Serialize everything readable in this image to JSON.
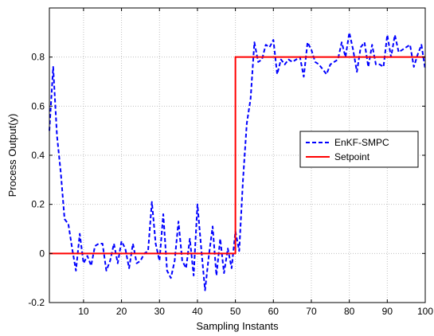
{
  "chart_data": {
    "type": "line",
    "title": "",
    "xlabel": "Sampling Instants",
    "ylabel": "Process Output(y)",
    "xlim": [
      1,
      100
    ],
    "ylim": [
      -0.2,
      1.0
    ],
    "xticks": [
      10,
      20,
      30,
      40,
      50,
      60,
      70,
      80,
      90,
      100
    ],
    "yticks": [
      -0.2,
      0,
      0.2,
      0.4,
      0.6,
      0.8
    ],
    "ytick_labels": [
      "-0.2",
      "0",
      "0.2",
      "0.4",
      "0.6",
      "0.8"
    ],
    "grid": true,
    "legend_position": "center-right",
    "series": [
      {
        "name": "EnKF-SMPC",
        "color": "#0000ff",
        "style": "dashed",
        "x": [
          1,
          2,
          3,
          4,
          5,
          6,
          7,
          8,
          9,
          10,
          11,
          12,
          13,
          14,
          15,
          16,
          17,
          18,
          19,
          20,
          21,
          22,
          23,
          24,
          25,
          26,
          27,
          28,
          29,
          30,
          31,
          32,
          33,
          34,
          35,
          36,
          37,
          38,
          39,
          40,
          41,
          42,
          43,
          44,
          45,
          46,
          47,
          48,
          49,
          50,
          51,
          52,
          53,
          54,
          55,
          56,
          57,
          58,
          59,
          60,
          61,
          62,
          63,
          64,
          65,
          66,
          67,
          68,
          69,
          70,
          71,
          72,
          73,
          74,
          75,
          76,
          77,
          78,
          79,
          80,
          81,
          82,
          83,
          84,
          85,
          86,
          87,
          88,
          89,
          90,
          91,
          92,
          93,
          94,
          95,
          96,
          97,
          98,
          99,
          100
        ],
        "y": [
          0.5,
          0.76,
          0.48,
          0.33,
          0.14,
          0.12,
          0.02,
          -0.07,
          0.08,
          -0.04,
          -0.01,
          -0.05,
          0.03,
          0.04,
          0.04,
          -0.07,
          -0.03,
          0.04,
          -0.04,
          0.05,
          0.02,
          -0.06,
          0.04,
          -0.04,
          -0.03,
          0.0,
          0.01,
          0.21,
          0.04,
          -0.03,
          0.16,
          -0.07,
          -0.1,
          -0.03,
          0.13,
          -0.03,
          -0.06,
          0.06,
          -0.09,
          0.2,
          0.02,
          -0.15,
          -0.01,
          0.11,
          -0.09,
          0.06,
          -0.08,
          0.02,
          -0.06,
          0.09,
          0.01,
          0.3,
          0.53,
          0.63,
          0.86,
          0.78,
          0.79,
          0.85,
          0.84,
          0.87,
          0.73,
          0.79,
          0.77,
          0.79,
          0.78,
          0.79,
          0.8,
          0.72,
          0.86,
          0.83,
          0.78,
          0.77,
          0.75,
          0.73,
          0.77,
          0.78,
          0.79,
          0.86,
          0.8,
          0.9,
          0.83,
          0.74,
          0.84,
          0.86,
          0.76,
          0.85,
          0.77,
          0.77,
          0.76,
          0.89,
          0.8,
          0.89,
          0.82,
          0.83,
          0.84,
          0.85,
          0.76,
          0.81,
          0.85,
          0.75
        ]
      },
      {
        "name": "Setpoint",
        "color": "#ff0000",
        "style": "solid",
        "x": [
          1,
          50,
          50,
          100
        ],
        "y": [
          0,
          0,
          0.8,
          0.8
        ]
      }
    ]
  }
}
